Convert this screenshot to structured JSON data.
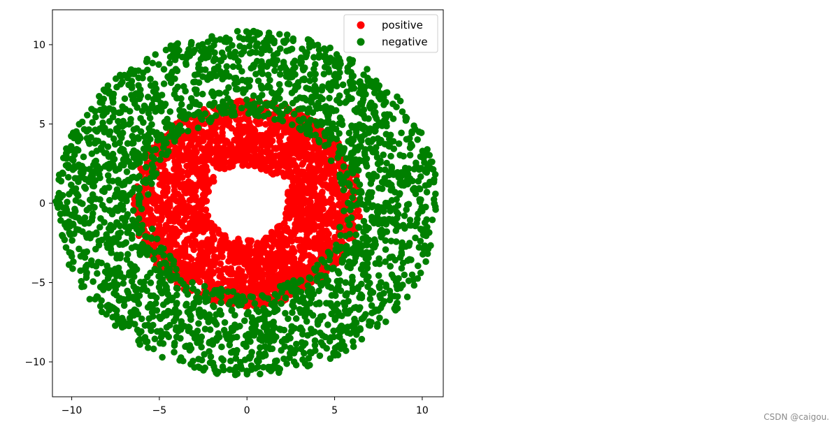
{
  "chart_data": {
    "type": "scatter",
    "title": "",
    "xlabel": "",
    "ylabel": "",
    "xlim": [
      -11.1,
      11.2
    ],
    "ylim": [
      -12.2,
      12.2
    ],
    "x_ticks": [
      -10,
      -5,
      0,
      5,
      10
    ],
    "y_ticks": [
      -10,
      -5,
      0,
      5,
      10
    ],
    "grid": false,
    "legend_position": "top-right",
    "series": [
      {
        "name": "positive",
        "color": "#ff0000",
        "distribution": "ring",
        "center": [
          0,
          0
        ],
        "radius_range": [
          2.3,
          6.5
        ],
        "approx_count": 2500
      },
      {
        "name": "negative",
        "color": "#008000",
        "distribution": "ring",
        "center": [
          0,
          0
        ],
        "radius_range": [
          5.5,
          10.9
        ],
        "approx_count": 2500
      }
    ]
  },
  "watermark": "CSDN @caigou."
}
